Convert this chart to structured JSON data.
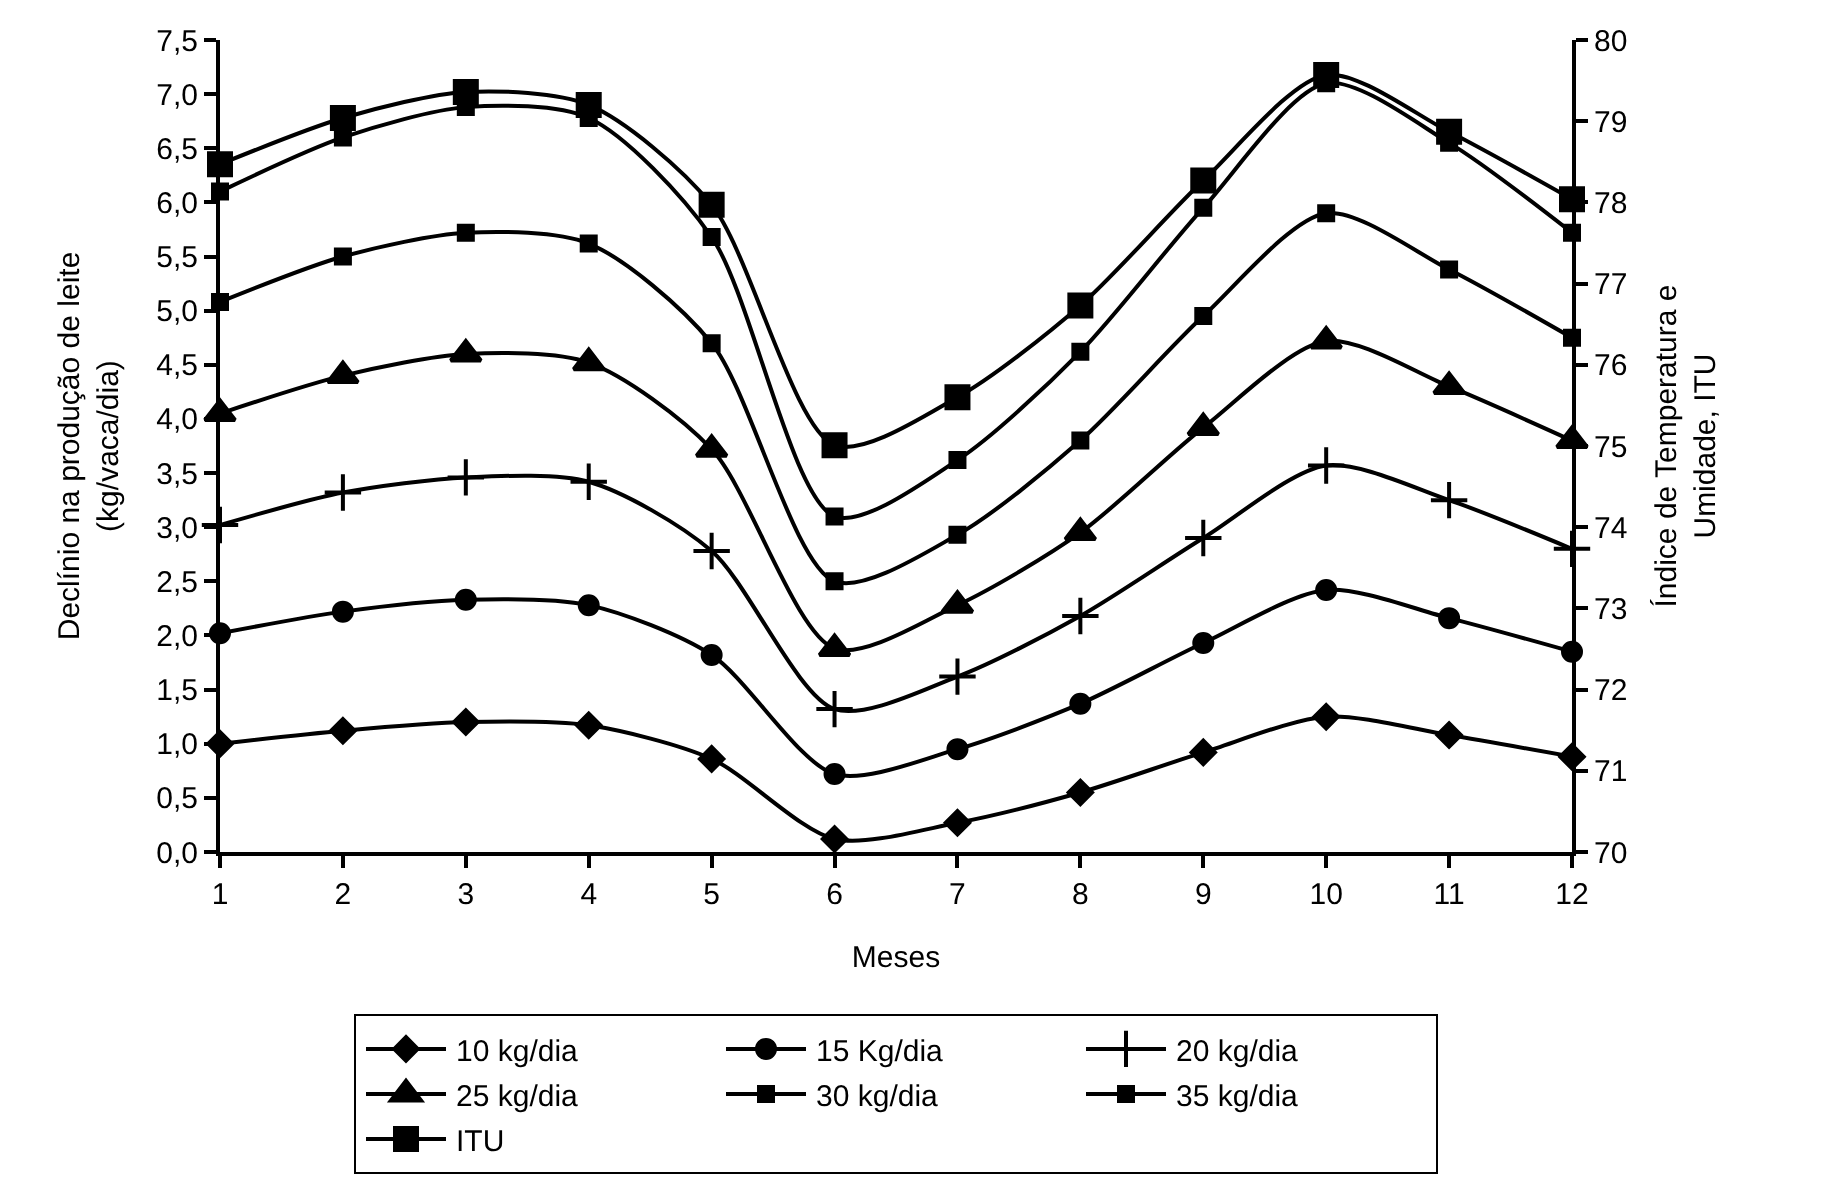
{
  "chart_data": {
    "type": "line",
    "xlabel": "Meses",
    "ylabel": "Declínio na produção de leite\n(kg/vaca/dia)",
    "y2label": "Índice de Temperatura e\nUmidade, ITU",
    "x": [
      1,
      2,
      3,
      4,
      5,
      6,
      7,
      8,
      9,
      10,
      11,
      12
    ],
    "xlim": [
      1,
      12
    ],
    "xticks": [
      1,
      2,
      3,
      4,
      5,
      6,
      7,
      8,
      9,
      10,
      11,
      12
    ],
    "ylim": [
      0,
      7.5
    ],
    "yticks": [
      {
        "value": 0,
        "label": "0,0"
      },
      {
        "value": 0.5,
        "label": "0,5"
      },
      {
        "value": 1,
        "label": "1,0"
      },
      {
        "value": 1.5,
        "label": "1,5"
      },
      {
        "value": 2,
        "label": "2,0"
      },
      {
        "value": 2.5,
        "label": "2,5"
      },
      {
        "value": 3,
        "label": "3,0"
      },
      {
        "value": 3.5,
        "label": "3,5"
      },
      {
        "value": 4,
        "label": "4,0"
      },
      {
        "value": 4.5,
        "label": "4,5"
      },
      {
        "value": 5,
        "label": "5,0"
      },
      {
        "value": 5.5,
        "label": "5,5"
      },
      {
        "value": 6,
        "label": "6,0"
      },
      {
        "value": 6.5,
        "label": "6,5"
      },
      {
        "value": 7,
        "label": "7,0"
      },
      {
        "value": 7.5,
        "label": "7,5"
      }
    ],
    "y2lim": [
      70,
      80
    ],
    "y2ticks": [
      70,
      71,
      72,
      73,
      74,
      75,
      76,
      77,
      78,
      79,
      80
    ],
    "legend": "bottom",
    "line_style": "solid",
    "series": [
      {
        "name": "10 kg/dia",
        "color": "#000000",
        "marker": "diamond",
        "values": [
          1.0,
          1.12,
          1.2,
          1.17,
          0.86,
          0.12,
          0.27,
          0.55,
          0.92,
          1.25,
          1.08,
          0.88
        ]
      },
      {
        "name": "15 Kg/dia",
        "color": "#000000",
        "marker": "circle",
        "values": [
          2.02,
          2.22,
          2.33,
          2.28,
          1.82,
          0.72,
          0.95,
          1.37,
          1.93,
          2.42,
          2.16,
          1.85
        ]
      },
      {
        "name": "20 kg/dia",
        "color": "#000000",
        "marker": "cross",
        "values": [
          3.02,
          3.32,
          3.46,
          3.42,
          2.78,
          1.32,
          1.62,
          2.18,
          2.9,
          3.57,
          3.25,
          2.8
        ]
      },
      {
        "name": "25 kg/dia",
        "color": "#000000",
        "marker": "triangle",
        "values": [
          4.05,
          4.4,
          4.6,
          4.52,
          3.72,
          1.88,
          2.28,
          2.95,
          3.92,
          4.72,
          4.3,
          3.8
        ]
      },
      {
        "name": "30 kg/dia",
        "color": "#000000",
        "marker": "square",
        "values": [
          5.08,
          5.5,
          5.72,
          5.62,
          4.7,
          2.5,
          2.93,
          3.8,
          4.95,
          5.9,
          5.38,
          4.75
        ]
      },
      {
        "name": "35 kg/dia",
        "color": "#000000",
        "marker": "square",
        "values": [
          6.1,
          6.6,
          6.88,
          6.78,
          5.68,
          3.1,
          3.62,
          4.62,
          5.95,
          7.1,
          6.55,
          5.72
        ]
      },
      {
        "name": "ITU",
        "color": "#000000",
        "marker": "square",
        "axis": "y2",
        "values": [
          78.47,
          79.04,
          79.36,
          79.2,
          77.97,
          75.01,
          75.6,
          76.73,
          78.27,
          79.57,
          78.87,
          78.04
        ]
      }
    ]
  }
}
